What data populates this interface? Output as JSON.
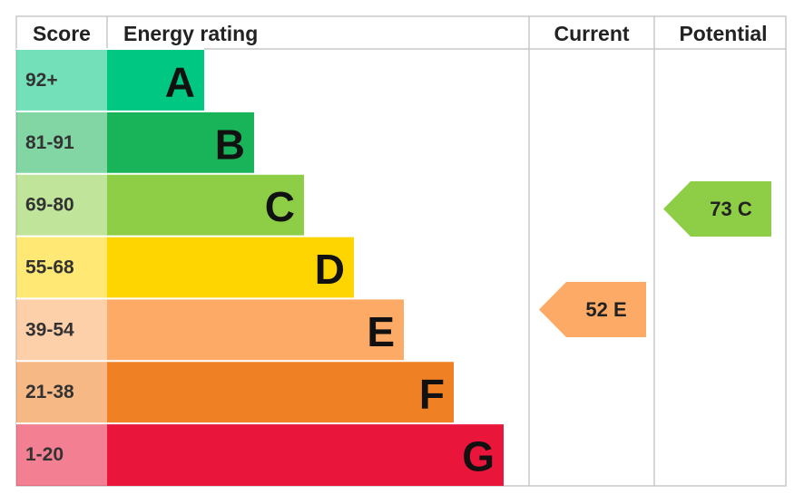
{
  "header": {
    "score": "Score",
    "energy_rating": "Energy rating",
    "current": "Current",
    "potential": "Potential"
  },
  "bands": [
    {
      "score": "92+",
      "letter": "A",
      "color": "#00c781"
    },
    {
      "score": "81-91",
      "letter": "B",
      "color": "#19b459"
    },
    {
      "score": "69-80",
      "letter": "C",
      "color": "#8dce46"
    },
    {
      "score": "55-68",
      "letter": "D",
      "color": "#ffd500"
    },
    {
      "score": "39-54",
      "letter": "E",
      "color": "#fcaa65"
    },
    {
      "score": "21-38",
      "letter": "F",
      "color": "#ef8023"
    },
    {
      "score": "1-20",
      "letter": "G",
      "color": "#e9153b"
    }
  ],
  "current": {
    "label": "52 E",
    "color": "#fcaa65"
  },
  "potential": {
    "label": "73 C",
    "color": "#8dce46"
  }
}
